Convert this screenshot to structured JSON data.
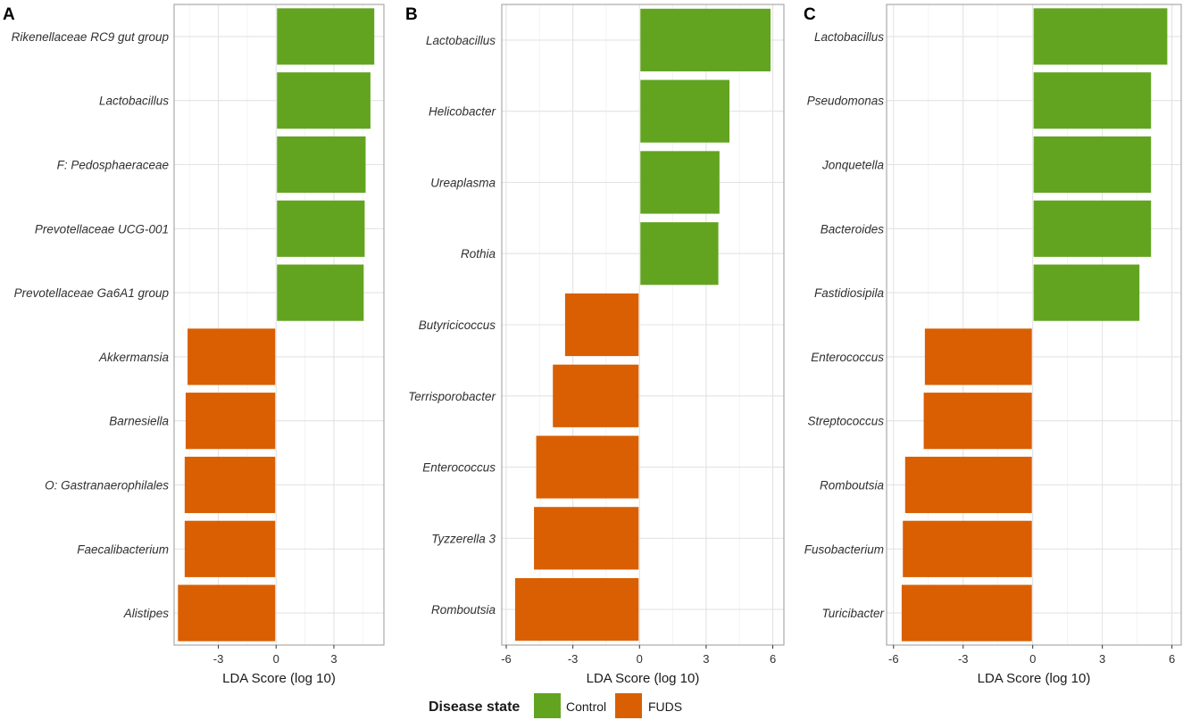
{
  "chart_data": [
    {
      "panel": "A",
      "type": "bar",
      "orientation": "horizontal",
      "categories": [
        "Rikenellaceae RC9 gut group",
        "Lactobacillus",
        "F: Pedosphaeraceae",
        "Prevotellaceae UCG-001",
        "Prevotellaceae Ga6A1 group",
        "Akkermansia",
        "Barnesiella",
        "O: Gastranaerophilales",
        "Faecalibacterium",
        "Alistipes"
      ],
      "values": [
        5.1,
        4.9,
        4.65,
        4.6,
        4.55,
        -4.6,
        -4.7,
        -4.75,
        -4.75,
        -5.1
      ],
      "groups": [
        "Control",
        "Control",
        "Control",
        "Control",
        "Control",
        "FUDS",
        "FUDS",
        "FUDS",
        "FUDS",
        "FUDS"
      ],
      "xlabel": "LDA Score (log 10)",
      "xlim": [
        -5.3,
        5.6
      ],
      "xticks": [
        -3,
        0,
        3
      ],
      "xtick_labels": [
        "-3",
        "0",
        "3"
      ],
      "grid": true
    },
    {
      "panel": "B",
      "type": "bar",
      "orientation": "horizontal",
      "categories": [
        "Lactobacillus",
        "Helicobacter",
        "Ureaplasma",
        "Rothia",
        "Butyricicoccus",
        "Terrisporobacter",
        "Enterococcus",
        "Tyzzerella 3",
        "Romboutsia"
      ],
      "values": [
        5.9,
        4.05,
        3.6,
        3.55,
        -3.35,
        -3.9,
        -4.65,
        -4.75,
        -5.6
      ],
      "groups": [
        "Control",
        "Control",
        "Control",
        "Control",
        "FUDS",
        "FUDS",
        "FUDS",
        "FUDS",
        "FUDS"
      ],
      "xlabel": "LDA Score (log 10)",
      "xlim": [
        -6.2,
        6.5
      ],
      "xticks": [
        -6,
        -3,
        0,
        3,
        6
      ],
      "xtick_labels": [
        "-6",
        "-3",
        "0",
        "3",
        "6"
      ],
      "grid": true
    },
    {
      "panel": "C",
      "type": "bar",
      "orientation": "horizontal",
      "categories": [
        "Lactobacillus",
        "Pseudomonas",
        "Jonquetella",
        "Bacteroides",
        "Fastidiosipila",
        "Enterococcus",
        "Streptococcus",
        "Romboutsia",
        "Fusobacterium",
        "Turicibacter"
      ],
      "values": [
        5.8,
        5.1,
        5.1,
        5.1,
        4.6,
        -4.65,
        -4.7,
        -5.5,
        -5.6,
        -5.65
      ],
      "groups": [
        "Control",
        "Control",
        "Control",
        "Control",
        "Control",
        "FUDS",
        "FUDS",
        "FUDS",
        "FUDS",
        "FUDS"
      ],
      "xlabel": "LDA Score (log 10)",
      "xlim": [
        -6.3,
        6.4
      ],
      "xticks": [
        -6,
        -3,
        0,
        3,
        6
      ],
      "xtick_labels": [
        "-6",
        "-3",
        "0",
        "3",
        "6"
      ],
      "grid": true
    }
  ],
  "legend": {
    "title": "Disease state",
    "entries": [
      {
        "label": "Control",
        "color": "#62a420"
      },
      {
        "label": "FUDS",
        "color": "#d95f02"
      }
    ],
    "placement": "bottom"
  },
  "colors": {
    "Control": "#62a420",
    "FUDS": "#d95f02"
  }
}
